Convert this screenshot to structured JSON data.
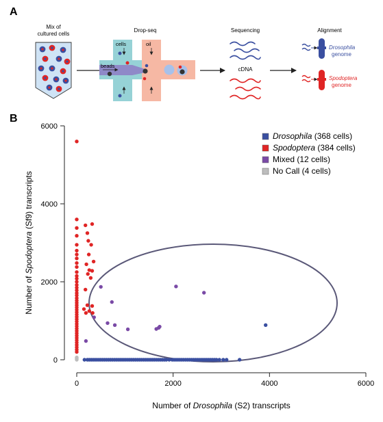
{
  "panel_a": {
    "label": "A",
    "mix_title_1": "Mix of",
    "mix_title_2": "cultured cells",
    "dropseq_title": "Drop-seq",
    "cells_label": "cells",
    "oil_label": "oil",
    "beads_label": "beads",
    "sequencing_title": "Sequencing",
    "cdna_label": "cDNA",
    "alignment_title": "Alignment",
    "dros_genome_1": "Drosophila",
    "dros_genome_2": "genome",
    "spod_genome_1": "Spodoptera",
    "spod_genome_2": "genome"
  },
  "panel_b": {
    "label": "B"
  },
  "colors": {
    "drosophila": "#3a4fa0",
    "spodoptera": "#e02525",
    "mixed": "#7a4aa6",
    "nocall": "#bdbdbd",
    "teal": "#96d2d6",
    "salmon": "#f6b8a4",
    "beads_channel": "#8f89c8",
    "ellipse": "#5a5878"
  },
  "chart_data": {
    "type": "scatter",
    "xlabel_prefix": "Number of ",
    "xlabel_italic": "Drosophila",
    "xlabel_suffix": " (S2) transcripts",
    "ylabel_prefix": "Number of ",
    "ylabel_italic": "Spodoptera",
    "ylabel_suffix": " (Sf9) transcripts",
    "xlim": [
      0,
      6000
    ],
    "ylim": [
      0,
      6000
    ],
    "x_ticks": [
      "0",
      "2000",
      "4000",
      "6000"
    ],
    "y_ticks": [
      "0",
      "2000",
      "4000",
      "6000"
    ],
    "legend_position": "top-right",
    "legend": [
      {
        "italic": "Drosophila",
        "rest": " (368 cells)",
        "color_key": "drosophila"
      },
      {
        "italic": "Spodoptera",
        "rest": " (384 cells)",
        "color_key": "spodoptera"
      },
      {
        "italic": "",
        "rest": "Mixed (12 cells)",
        "color_key": "mixed"
      },
      {
        "italic": "",
        "rest": "No Call (4 cells)",
        "color_key": "nocall"
      }
    ],
    "series": [
      {
        "key": "drosophila",
        "points": [
          [
            160,
            0
          ],
          [
            220,
            0
          ],
          [
            260,
            0
          ],
          [
            300,
            0
          ],
          [
            340,
            0
          ],
          [
            380,
            0
          ],
          [
            420,
            0
          ],
          [
            460,
            0
          ],
          [
            500,
            0
          ],
          [
            540,
            0
          ],
          [
            580,
            0
          ],
          [
            620,
            0
          ],
          [
            660,
            0
          ],
          [
            700,
            0
          ],
          [
            740,
            0
          ],
          [
            780,
            0
          ],
          [
            820,
            0
          ],
          [
            860,
            0
          ],
          [
            900,
            0
          ],
          [
            940,
            0
          ],
          [
            980,
            0
          ],
          [
            1020,
            0
          ],
          [
            1060,
            0
          ],
          [
            1100,
            0
          ],
          [
            1140,
            0
          ],
          [
            1180,
            0
          ],
          [
            1220,
            0
          ],
          [
            1260,
            0
          ],
          [
            1300,
            0
          ],
          [
            1340,
            0
          ],
          [
            1380,
            0
          ],
          [
            1420,
            0
          ],
          [
            1460,
            0
          ],
          [
            1500,
            0
          ],
          [
            1540,
            0
          ],
          [
            1580,
            0
          ],
          [
            1620,
            0
          ],
          [
            1660,
            0
          ],
          [
            1700,
            0
          ],
          [
            1740,
            0
          ],
          [
            1780,
            0
          ],
          [
            1820,
            0
          ],
          [
            1860,
            0
          ],
          [
            1920,
            0
          ],
          [
            1980,
            0
          ],
          [
            2020,
            0
          ],
          [
            2060,
            0
          ],
          [
            2100,
            0
          ],
          [
            2140,
            0
          ],
          [
            2180,
            0
          ],
          [
            2220,
            0
          ],
          [
            2260,
            0
          ],
          [
            2300,
            0
          ],
          [
            2340,
            0
          ],
          [
            2380,
            0
          ],
          [
            2420,
            0
          ],
          [
            2460,
            0
          ],
          [
            2500,
            0
          ],
          [
            2540,
            0
          ],
          [
            2580,
            0
          ],
          [
            2620,
            0
          ],
          [
            2660,
            0
          ],
          [
            2700,
            0
          ],
          [
            2740,
            0
          ],
          [
            2780,
            0
          ],
          [
            2820,
            0
          ],
          [
            2860,
            0
          ],
          [
            2900,
            0
          ],
          [
            2960,
            0
          ],
          [
            3040,
            0
          ],
          [
            3110,
            0
          ],
          [
            3380,
            0
          ],
          [
            3920,
            890
          ]
        ]
      },
      {
        "key": "spodoptera",
        "points": [
          [
            0,
            5600
          ],
          [
            0,
            3600
          ],
          [
            0,
            3380
          ],
          [
            0,
            3180
          ],
          [
            0,
            2950
          ],
          [
            0,
            2800
          ],
          [
            0,
            2700
          ],
          [
            0,
            2600
          ],
          [
            0,
            2480
          ],
          [
            0,
            2380
          ],
          [
            0,
            2250
          ],
          [
            0,
            2150
          ],
          [
            0,
            2080
          ],
          [
            0,
            2000
          ],
          [
            0,
            1920
          ],
          [
            0,
            1850
          ],
          [
            0,
            1780
          ],
          [
            0,
            1710
          ],
          [
            0,
            1650
          ],
          [
            0,
            1580
          ],
          [
            0,
            1520
          ],
          [
            0,
            1460
          ],
          [
            0,
            1400
          ],
          [
            0,
            1340
          ],
          [
            0,
            1280
          ],
          [
            0,
            1220
          ],
          [
            0,
            1160
          ],
          [
            0,
            1100
          ],
          [
            0,
            1040
          ],
          [
            0,
            980
          ],
          [
            0,
            920
          ],
          [
            0,
            860
          ],
          [
            0,
            800
          ],
          [
            0,
            740
          ],
          [
            0,
            680
          ],
          [
            0,
            620
          ],
          [
            0,
            560
          ],
          [
            0,
            500
          ],
          [
            0,
            440
          ],
          [
            0,
            380
          ],
          [
            0,
            320
          ],
          [
            0,
            260
          ],
          [
            0,
            200
          ],
          [
            180,
            3450
          ],
          [
            320,
            3480
          ],
          [
            220,
            3250
          ],
          [
            240,
            3050
          ],
          [
            300,
            2950
          ],
          [
            250,
            2700
          ],
          [
            350,
            2520
          ],
          [
            200,
            2450
          ],
          [
            260,
            2300
          ],
          [
            320,
            2280
          ],
          [
            230,
            2200
          ],
          [
            290,
            2100
          ],
          [
            180,
            1800
          ],
          [
            220,
            1400
          ],
          [
            150,
            1300
          ],
          [
            190,
            1200
          ],
          [
            260,
            1250
          ],
          [
            320,
            1380
          ],
          [
            330,
            1200
          ]
        ]
      },
      {
        "key": "mixed",
        "points": [
          [
            500,
            1870
          ],
          [
            730,
            1480
          ],
          [
            2060,
            1880
          ],
          [
            2640,
            1720
          ],
          [
            640,
            940
          ],
          [
            790,
            890
          ],
          [
            1060,
            780
          ],
          [
            1650,
            790
          ],
          [
            1700,
            820
          ],
          [
            1720,
            850
          ],
          [
            360,
            1090
          ],
          [
            190,
            480
          ]
        ]
      },
      {
        "key": "nocall",
        "points": [
          [
            0,
            60
          ],
          [
            0,
            40
          ],
          [
            0,
            20
          ],
          [
            0,
            0
          ]
        ]
      }
    ]
  }
}
